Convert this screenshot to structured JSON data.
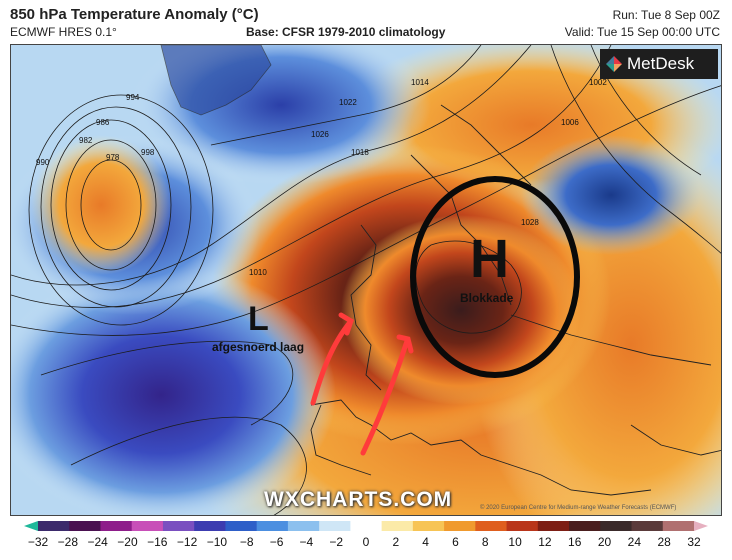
{
  "header": {
    "title": "850 hPa Temperature Anomaly (°C)",
    "model": "ECMWF HRES 0.1°",
    "base": "Base: CFSR 1979-2010 climatology",
    "run": "Run: Tue 8 Sep 00Z",
    "valid": "Valid: Tue 15 Sep 00:00 UTC"
  },
  "logo": {
    "text": "MetDesk"
  },
  "watermark": {
    "text": "WXCHARTS.COM"
  },
  "credit": {
    "text": "© 2020 European Centre for Medium-range Weather Forecasts (ECMWF)"
  },
  "annotations": {
    "high_letter": "H",
    "high_label": "Blokkade",
    "low_letter": "L",
    "low_label": "afgesnoerd laag"
  },
  "isobars": [
    "1026",
    "1022",
    "1018",
    "1014",
    "1010",
    "1006",
    "1002",
    "998",
    "994",
    "990",
    "986",
    "982",
    "978",
    "1028"
  ],
  "colorbar": {
    "ticks": [
      "−32",
      "−28",
      "−24",
      "−20",
      "−16",
      "−12",
      "−10",
      "−8",
      "−6",
      "−4",
      "−2",
      "0",
      "2",
      "4",
      "6",
      "8",
      "10",
      "12",
      "16",
      "20",
      "24",
      "28",
      "32"
    ],
    "colors": [
      "#1fb89a",
      "#3b2a6b",
      "#4a1150",
      "#8e1d8a",
      "#c84fb8",
      "#7a4fc0",
      "#3c3cb0",
      "#2e5fc8",
      "#4c8fe0",
      "#8cc0ee",
      "#cfe6f6",
      "#ffffff",
      "#fbeaa8",
      "#f7c455",
      "#f09a2e",
      "#df5e1e",
      "#b9351a",
      "#7d1e14",
      "#4a1e1e",
      "#3a2a2a",
      "#5a3a3a",
      "#b07070",
      "#e6b0c0"
    ]
  }
}
